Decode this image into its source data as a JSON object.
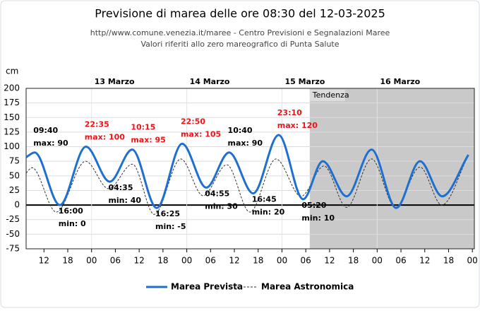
{
  "chart_data": {
    "type": "line",
    "title": "Previsione di marea delle ore 08:30 del 12-03-2025",
    "subtitle": [
      "http//www.comune.venezia.it/maree - Centro Previsioni e Segnalazioni Maree",
      "Valori riferiti allo zero mareografico di Punta Salute"
    ],
    "y_unit": "cm",
    "xlim": [
      7.5,
      120.5
    ],
    "ylim": [
      -75,
      200
    ],
    "yticks": [
      -75,
      -50,
      -25,
      0,
      25,
      50,
      75,
      100,
      125,
      150,
      175,
      200
    ],
    "xticks": [
      {
        "value": 12,
        "label": "12"
      },
      {
        "value": 18,
        "label": "18"
      },
      {
        "value": 24,
        "label": "00"
      },
      {
        "value": 30,
        "label": "06"
      },
      {
        "value": 36,
        "label": "12"
      },
      {
        "value": 42,
        "label": "18"
      },
      {
        "value": 48,
        "label": "00"
      },
      {
        "value": 54,
        "label": "06"
      },
      {
        "value": 60,
        "label": "12"
      },
      {
        "value": 66,
        "label": "18"
      },
      {
        "value": 72,
        "label": "00"
      },
      {
        "value": 78,
        "label": "06"
      },
      {
        "value": 84,
        "label": "12"
      },
      {
        "value": 90,
        "label": "18"
      },
      {
        "value": 96,
        "label": "00"
      },
      {
        "value": 102,
        "label": "06"
      },
      {
        "value": 108,
        "label": "12"
      },
      {
        "value": 114,
        "label": "18"
      },
      {
        "value": 120,
        "label": "00"
      }
    ],
    "days": [
      {
        "label": "13 Marzo",
        "x": 24
      },
      {
        "label": "14 Marzo",
        "x": 48
      },
      {
        "label": "15 Marzo",
        "x": 72
      },
      {
        "label": "16 Marzo",
        "x": 96
      }
    ],
    "trend": {
      "label": "Tendenza",
      "start": 79
    },
    "grid": true,
    "series": [
      {
        "name": "Marea Prevista",
        "color": "#1f6fd0",
        "style": "solid",
        "x": [
          7.5,
          9.67,
          16,
          22.58,
          28.58,
          34.25,
          40.42,
          46.83,
          52.92,
          58.67,
          64.75,
          71.17,
          77.33,
          82.3,
          88.3,
          94.6,
          100.8,
          106.8,
          112.4,
          119
        ],
        "values": [
          82,
          90,
          0,
          100,
          40,
          95,
          -5,
          105,
          30,
          90,
          20,
          120,
          10,
          75,
          15,
          95,
          -5,
          75,
          15,
          86
        ],
        "time_labels": [
          null,
          "09:40",
          "16:00",
          "22:35",
          "04:35",
          "10:15",
          "16:25",
          "22:50",
          "04:55",
          "10:40",
          "16:45",
          "23:10",
          "05:20",
          null,
          null,
          null,
          null,
          null,
          null,
          null
        ],
        "value_labels": [
          null,
          "max: 90",
          "min: 0",
          "max: 100",
          "min: 40",
          "max: 95",
          "min: -5",
          "max: 105",
          "min: 30",
          "max: 90",
          "min: 20",
          "max: 120",
          "min: 10",
          null,
          null,
          null,
          null,
          null,
          null,
          null
        ],
        "label_colors": [
          null,
          "#000000",
          "#000000",
          "#e8161b",
          "#000000",
          "#e8161b",
          "#000000",
          "#e8161b",
          "#000000",
          "#000000",
          "#000000",
          "#e8161b",
          "#000000",
          null,
          null,
          null,
          null,
          null,
          null,
          null
        ]
      },
      {
        "name": "Marea Astronomica",
        "color": "#333333",
        "style": "dashed",
        "x": [
          7.5,
          9,
          15.1,
          22.5,
          28.3,
          34.3,
          39.8,
          46.5,
          52.1,
          58.1,
          63.9,
          70.5,
          76.8,
          82.6,
          88.3,
          94.6,
          100.6,
          106.8,
          112.3,
          118.8
        ],
        "values": [
          55,
          64,
          -12,
          75,
          28,
          70,
          -16,
          79,
          16,
          69,
          -12,
          79,
          15,
          67,
          -4,
          79,
          -4,
          65,
          0,
          82
        ]
      }
    ]
  }
}
